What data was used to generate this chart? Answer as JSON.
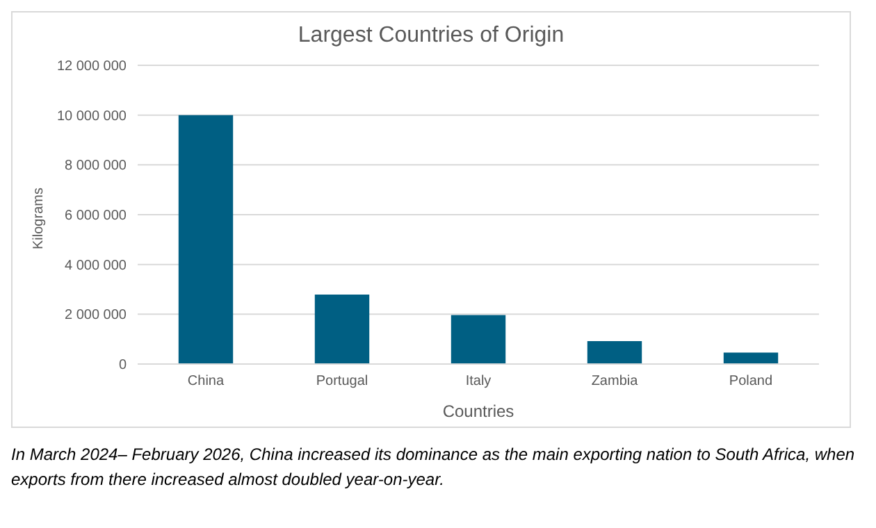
{
  "chart_data": {
    "type": "bar",
    "title": "Largest Countries of Origin",
    "xlabel": "Countries",
    "ylabel": "Kilograms",
    "categories": [
      "China",
      "Portugal",
      "Italy",
      "Zambia",
      "Poland"
    ],
    "values": [
      10000000,
      2790000,
      1970000,
      920000,
      460000
    ],
    "color": "#005f83",
    "ylim": [
      0,
      12000000
    ],
    "yticks": [
      0,
      2000000,
      4000000,
      6000000,
      8000000,
      10000000,
      12000000
    ],
    "grid": "y",
    "legend": false,
    "annotations": [
      "In March 2024– February 2026, China increased its dominance as the main exporting nation to South Africa, when exports from there increased almost doubled year-on-year."
    ]
  }
}
